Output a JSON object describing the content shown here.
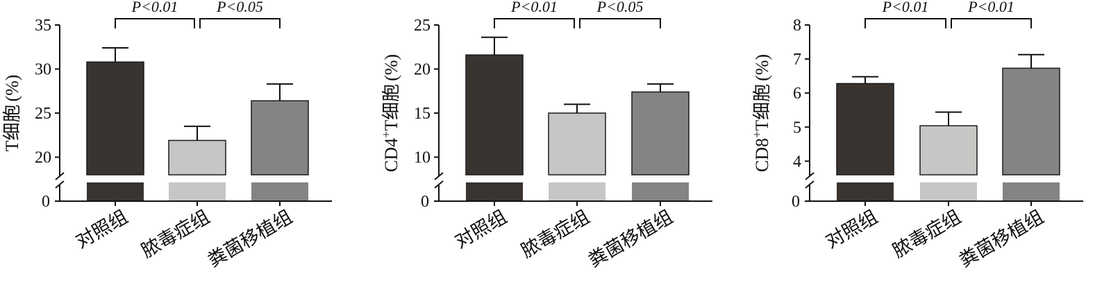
{
  "chart_data": [
    {
      "type": "bar",
      "categories": [
        "对照组",
        "脓毒症组",
        "粪菌移植组"
      ],
      "values": [
        30.8,
        21.9,
        26.4
      ],
      "errors": [
        1.6,
        1.6,
        1.9
      ],
      "ylabel": "T细胞 (%)",
      "ylabel_parts": {
        "main": "T细胞",
        "sup": "",
        "tail": "",
        "unit": "(%)"
      },
      "yticks": [
        20,
        25,
        30,
        35
      ],
      "ytick_labels": [
        "20",
        "25",
        "30",
        "35"
      ],
      "ylim": [
        18,
        35
      ],
      "axis_break": true,
      "zero_label": "0",
      "comparisons": [
        {
          "from": 0,
          "to": 1,
          "label": "P<0.01"
        },
        {
          "from": 1,
          "to": 2,
          "label": "P<0.05"
        }
      ]
    },
    {
      "type": "bar",
      "categories": [
        "对照组",
        "脓毒症组",
        "粪菌移植组"
      ],
      "values": [
        21.6,
        15.0,
        17.4
      ],
      "errors": [
        2.0,
        1.0,
        0.9
      ],
      "ylabel": "CD4+T细胞 (%)",
      "ylabel_parts": {
        "main": "CD4",
        "sup": "+",
        "tail": "T细胞",
        "unit": "(%)"
      },
      "yticks": [
        10,
        15,
        20,
        25
      ],
      "ytick_labels": [
        "10",
        "15",
        "20",
        "25"
      ],
      "ylim": [
        8,
        25
      ],
      "axis_break": true,
      "zero_label": "0",
      "comparisons": [
        {
          "from": 0,
          "to": 1,
          "label": "P<0.01"
        },
        {
          "from": 1,
          "to": 2,
          "label": "P<0.05"
        }
      ]
    },
    {
      "type": "bar",
      "categories": [
        "对照组",
        "脓毒症组",
        "粪菌移植组"
      ],
      "values": [
        6.28,
        5.04,
        6.73
      ],
      "errors": [
        0.2,
        0.4,
        0.4
      ],
      "ylabel": "CD8+T细胞 (%)",
      "ylabel_parts": {
        "main": "CD8",
        "sup": "+",
        "tail": "T细胞",
        "unit": "(%)"
      },
      "yticks": [
        4,
        5,
        6,
        7,
        8
      ],
      "ytick_labels": [
        "4",
        "5",
        "6",
        "7",
        "8"
      ],
      "ylim": [
        3.6,
        8
      ],
      "axis_break": true,
      "zero_label": "0",
      "comparisons": [
        {
          "from": 0,
          "to": 1,
          "label": "P<0.01"
        },
        {
          "from": 1,
          "to": 2,
          "label": "P<0.01"
        }
      ]
    }
  ],
  "colors": {
    "bars": [
      "#3a3431",
      "#c6c6c4",
      "#858383"
    ],
    "axis": "#111111"
  }
}
